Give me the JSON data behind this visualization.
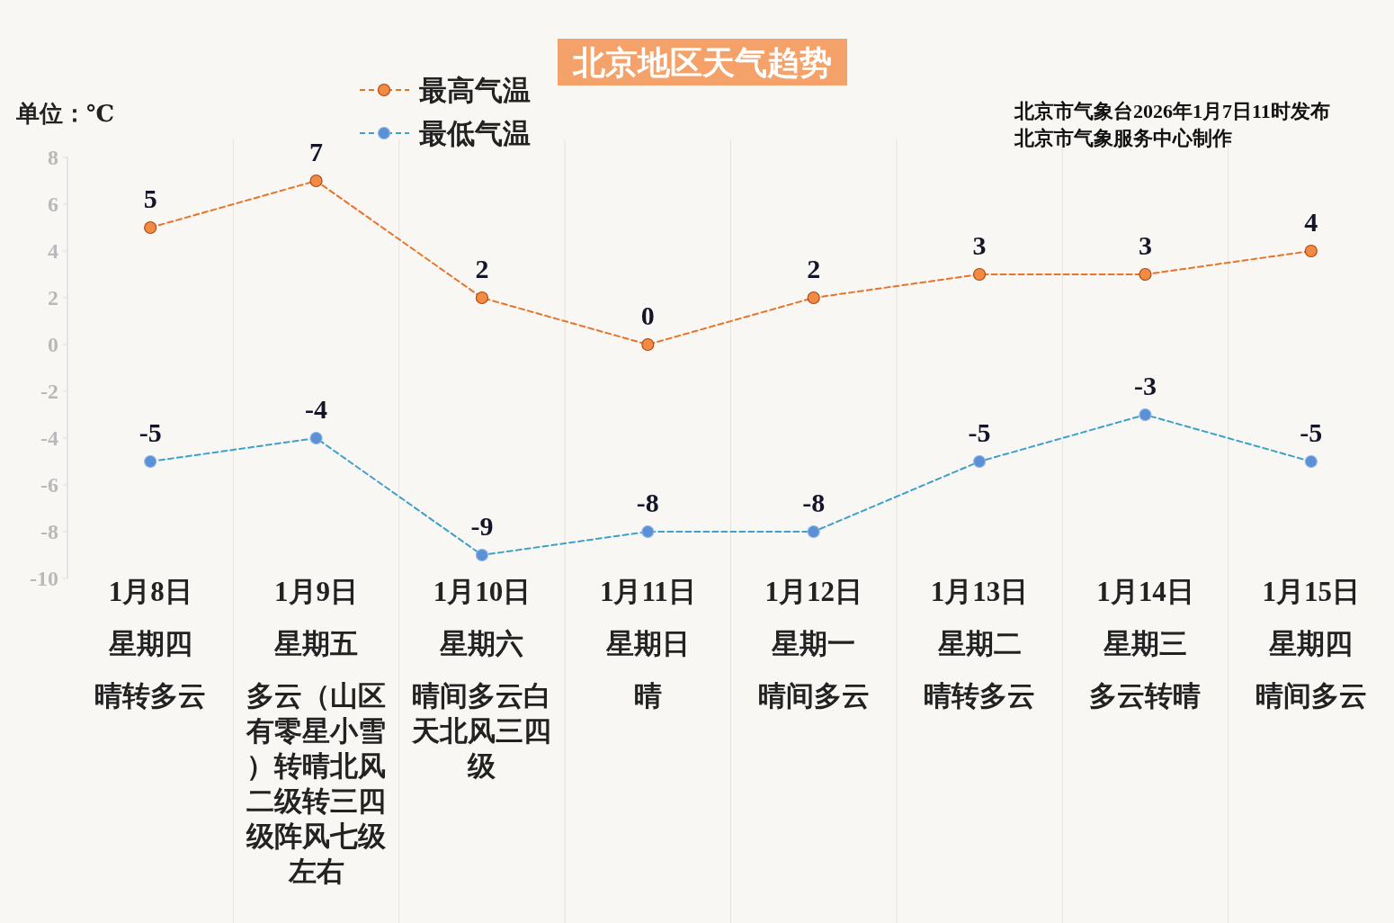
{
  "chart_data": {
    "type": "line",
    "title": "北京地区天气趋势",
    "categories": [
      "1月8日星期四晴转多云",
      "1月9日星期五多云（山区有零星小雪）转晴北风二级转三四级阵风七级左右",
      "1月10日星期六晴间多云白天北风三四级",
      "1月11日星期日晴",
      "1月12日星期一晴间多云",
      "1月13日星期二晴转多云",
      "1月14日星期三多云转晴",
      "1月15日星期四晴间多云"
    ],
    "series": [
      {
        "name": "最高气温",
        "color": "#e8742a",
        "values": [
          5,
          7,
          2,
          0,
          2,
          3,
          3,
          4
        ]
      },
      {
        "name": "最低气温",
        "color": "#3fa0c8",
        "values": [
          -5,
          -4,
          -9,
          -8,
          -8,
          -5,
          -3,
          -5
        ]
      }
    ],
    "ylim": [
      -10,
      8
    ],
    "yticks": [
      -10,
      -8,
      -6,
      -4,
      -2,
      0,
      2,
      4,
      6,
      8
    ],
    "annotations": [
      "单位：℃",
      "北京市气象台2026年1月7日11时发布",
      "北京市气象服务中心制作"
    ],
    "data_labels": true,
    "legend": "top left",
    "grid": "x",
    "marker": "circle",
    "line_style": "dashed"
  }
}
